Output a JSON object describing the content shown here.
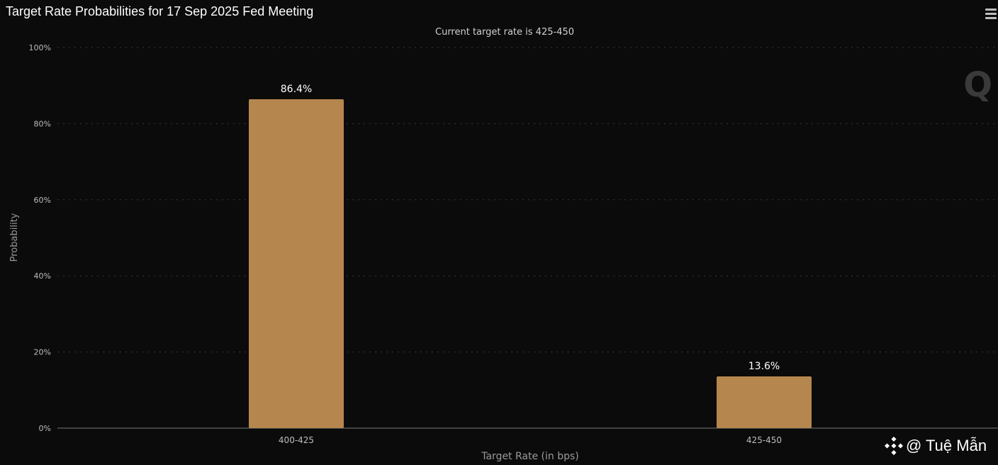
{
  "chart_data": {
    "type": "bar",
    "title": "Target Rate Probabilities for 17 Sep 2025 Fed Meeting",
    "subtitle": "Current target rate is 425-450",
    "xlabel": "Target Rate (in bps)",
    "ylabel": "Probability",
    "categories": [
      "400-425",
      "425-450"
    ],
    "values": [
      86.4,
      13.6
    ],
    "data_labels": [
      "86.4%",
      "13.6%"
    ],
    "yticks": [
      "0%",
      "20%",
      "40%",
      "60%",
      "80%",
      "100%"
    ],
    "ylim": [
      0,
      100
    ],
    "grid": true,
    "bar_color": "#b5874e"
  },
  "watermark": {
    "text": "@ Tuệ Mẫn",
    "icon": "binance-icon"
  },
  "logo_letter": "Q",
  "menu": {
    "icon": "hamburger-menu-icon"
  }
}
